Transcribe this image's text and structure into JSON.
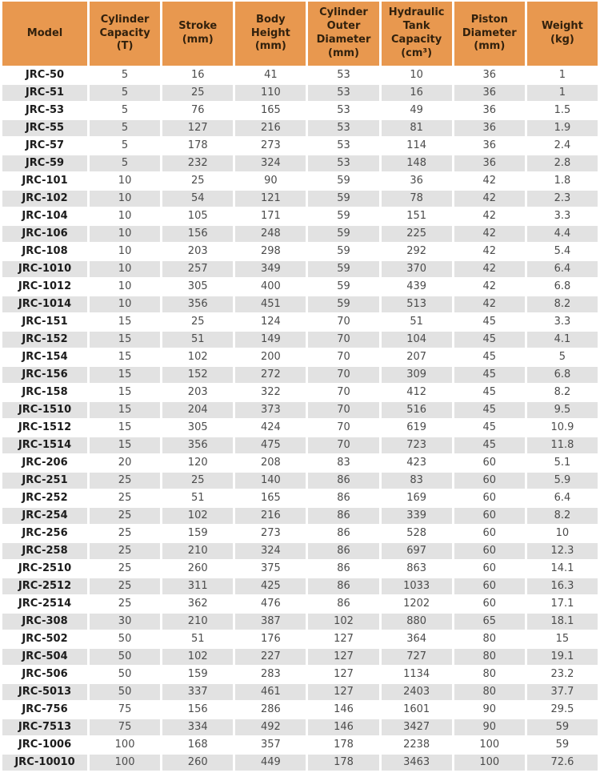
{
  "colors": {
    "header_bg": "#e8984f",
    "header_text": "#32210d",
    "row_alt_bg": "#e2e2e2",
    "row_bg": "#ffffff",
    "cell_text": "#4c4c4c",
    "model_text": "#1c1c1c",
    "page_bg": "#ffffff"
  },
  "table": {
    "columns": [
      "Model",
      "Cylinder Capacity (T)",
      "Stroke (mm)",
      "Body Height (mm)",
      "Cylinder Outer Diameter (mm)",
      "Hydraulic Tank Capacity (cm³)",
      "Piston Diameter (mm)",
      "Weight (kg)"
    ],
    "rows": [
      [
        "JRC-50",
        "5",
        "16",
        "41",
        "53",
        "10",
        "36",
        "1"
      ],
      [
        "JRC-51",
        "5",
        "25",
        "110",
        "53",
        "16",
        "36",
        "1"
      ],
      [
        "JRC-53",
        "5",
        "76",
        "165",
        "53",
        "49",
        "36",
        "1.5"
      ],
      [
        "JRC-55",
        "5",
        "127",
        "216",
        "53",
        "81",
        "36",
        "1.9"
      ],
      [
        "JRC-57",
        "5",
        "178",
        "273",
        "53",
        "114",
        "36",
        "2.4"
      ],
      [
        "JRC-59",
        "5",
        "232",
        "324",
        "53",
        "148",
        "36",
        "2.8"
      ],
      [
        "JRC-101",
        "10",
        "25",
        "90",
        "59",
        "36",
        "42",
        "1.8"
      ],
      [
        "JRC-102",
        "10",
        "54",
        "121",
        "59",
        "78",
        "42",
        "2.3"
      ],
      [
        "JRC-104",
        "10",
        "105",
        "171",
        "59",
        "151",
        "42",
        "3.3"
      ],
      [
        "JRC-106",
        "10",
        "156",
        "248",
        "59",
        "225",
        "42",
        "4.4"
      ],
      [
        "JRC-108",
        "10",
        "203",
        "298",
        "59",
        "292",
        "42",
        "5.4"
      ],
      [
        "JRC-1010",
        "10",
        "257",
        "349",
        "59",
        "370",
        "42",
        "6.4"
      ],
      [
        "JRC-1012",
        "10",
        "305",
        "400",
        "59",
        "439",
        "42",
        "6.8"
      ],
      [
        "JRC-1014",
        "10",
        "356",
        "451",
        "59",
        "513",
        "42",
        "8.2"
      ],
      [
        "JRC-151",
        "15",
        "25",
        "124",
        "70",
        "51",
        "45",
        "3.3"
      ],
      [
        "JRC-152",
        "15",
        "51",
        "149",
        "70",
        "104",
        "45",
        "4.1"
      ],
      [
        "JRC-154",
        "15",
        "102",
        "200",
        "70",
        "207",
        "45",
        "5"
      ],
      [
        "JRC-156",
        "15",
        "152",
        "272",
        "70",
        "309",
        "45",
        "6.8"
      ],
      [
        "JRC-158",
        "15",
        "203",
        "322",
        "70",
        "412",
        "45",
        "8.2"
      ],
      [
        "JRC-1510",
        "15",
        "204",
        "373",
        "70",
        "516",
        "45",
        "9.5"
      ],
      [
        "JRC-1512",
        "15",
        "305",
        "424",
        "70",
        "619",
        "45",
        "10.9"
      ],
      [
        "JRC-1514",
        "15",
        "356",
        "475",
        "70",
        "723",
        "45",
        "11.8"
      ],
      [
        "JRC-206",
        "20",
        "120",
        "208",
        "83",
        "423",
        "60",
        "5.1"
      ],
      [
        "JRC-251",
        "25",
        "25",
        "140",
        "86",
        "83",
        "60",
        "5.9"
      ],
      [
        "JRC-252",
        "25",
        "51",
        "165",
        "86",
        "169",
        "60",
        "6.4"
      ],
      [
        "JRC-254",
        "25",
        "102",
        "216",
        "86",
        "339",
        "60",
        "8.2"
      ],
      [
        "JRC-256",
        "25",
        "159",
        "273",
        "86",
        "528",
        "60",
        "10"
      ],
      [
        "JRC-258",
        "25",
        "210",
        "324",
        "86",
        "697",
        "60",
        "12.3"
      ],
      [
        "JRC-2510",
        "25",
        "260",
        "375",
        "86",
        "863",
        "60",
        "14.1"
      ],
      [
        "JRC-2512",
        "25",
        "311",
        "425",
        "86",
        "1033",
        "60",
        "16.3"
      ],
      [
        "JRC-2514",
        "25",
        "362",
        "476",
        "86",
        "1202",
        "60",
        "17.1"
      ],
      [
        "JRC-308",
        "30",
        "210",
        "387",
        "102",
        "880",
        "65",
        "18.1"
      ],
      [
        "JRC-502",
        "50",
        "51",
        "176",
        "127",
        "364",
        "80",
        "15"
      ],
      [
        "JRC-504",
        "50",
        "102",
        "227",
        "127",
        "727",
        "80",
        "19.1"
      ],
      [
        "JRC-506",
        "50",
        "159",
        "283",
        "127",
        "1134",
        "80",
        "23.2"
      ],
      [
        "JRC-5013",
        "50",
        "337",
        "461",
        "127",
        "2403",
        "80",
        "37.7"
      ],
      [
        "JRC-756",
        "75",
        "156",
        "286",
        "146",
        "1601",
        "90",
        "29.5"
      ],
      [
        "JRC-7513",
        "75",
        "334",
        "492",
        "146",
        "3427",
        "90",
        "59"
      ],
      [
        "JRC-1006",
        "100",
        "168",
        "357",
        "178",
        "2238",
        "100",
        "59"
      ],
      [
        "JRC-10010",
        "100",
        "260",
        "449",
        "178",
        "3463",
        "100",
        "72.6"
      ]
    ]
  }
}
